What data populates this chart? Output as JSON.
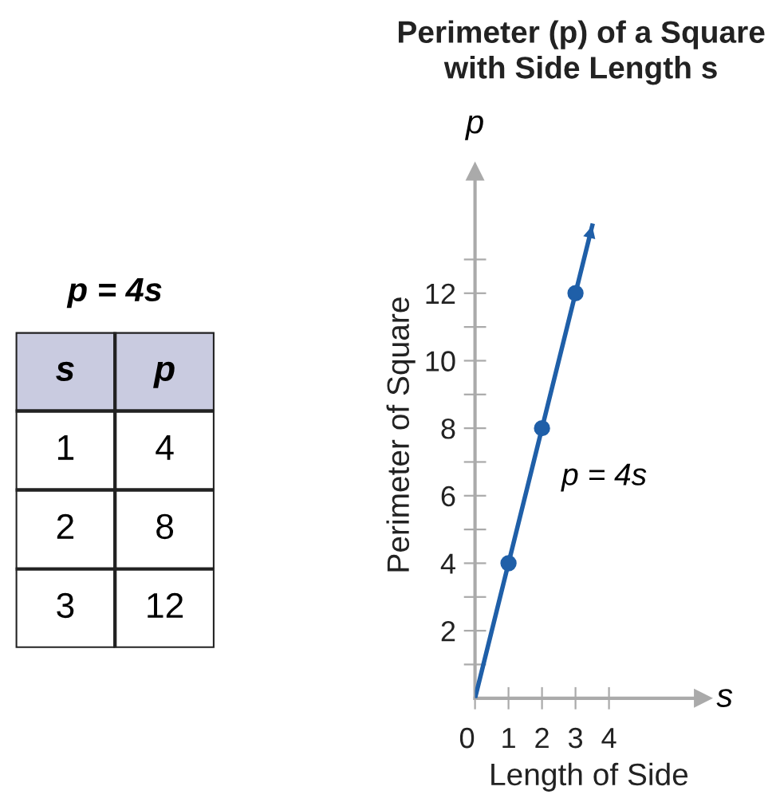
{
  "chart_data": [
    {
      "type": "other",
      "title": "p = 4s",
      "annotations": [
        "s",
        "p",
        "1",
        "4",
        "2",
        "8",
        "3",
        "12"
      ]
    },
    {
      "type": "line",
      "title": "Perimeter (p) of a Square\nwith Side Length s",
      "xlabel": "Length of Side",
      "ylabel": "Perimeter of Square",
      "series": [
        {
          "type": "line",
          "color": "#1f5fa8",
          "x": [
            0,
            3.5
          ],
          "values": [
            0,
            14
          ],
          "marker": "none"
        },
        {
          "type": "scatter",
          "color": "#1f5fa8",
          "x": [
            1,
            2,
            3
          ],
          "values": [
            4,
            8,
            12
          ],
          "marker": "circle"
        }
      ],
      "annotations": [
        "p",
        "s",
        "p = 4s"
      ],
      "xlim": [
        0,
        6.8
      ],
      "ylim": [
        0,
        15.6
      ],
      "xticks": [
        {
          "value": 0,
          "label": "0"
        },
        1,
        2,
        3,
        4
      ],
      "yticks": [
        {
          "value": 1,
          "label": null
        },
        2,
        {
          "value": 3,
          "label": null
        },
        4,
        {
          "value": 5,
          "label": null
        },
        6,
        {
          "value": 7,
          "label": null
        },
        8,
        {
          "value": 9,
          "label": null
        },
        10,
        {
          "value": 11,
          "label": null
        },
        12,
        {
          "value": 13,
          "label": null
        }
      ],
      "grid": false,
      "legend": false
    }
  ]
}
